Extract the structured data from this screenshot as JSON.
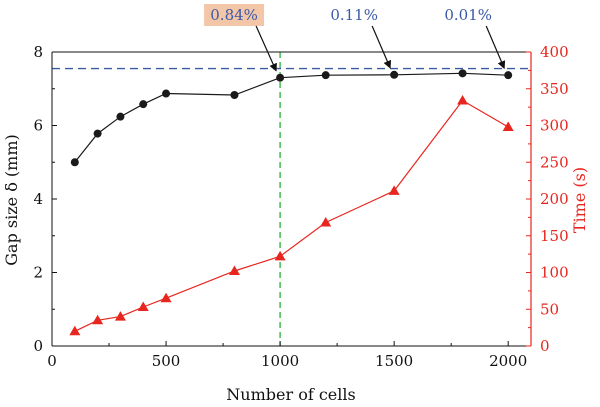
{
  "chart_data": {
    "type": "line",
    "x": [
      100,
      200,
      300,
      400,
      500,
      800,
      1000,
      1200,
      1500,
      1800,
      2000
    ],
    "series": [
      {
        "axis": "left",
        "color": "#1a1a1a",
        "marker": "circle",
        "values": [
          5.0,
          5.78,
          6.24,
          6.58,
          6.87,
          6.83,
          7.3,
          7.37,
          7.38,
          7.42,
          7.37
        ]
      },
      {
        "axis": "right",
        "color": "#e8261f",
        "marker": "triangle",
        "values": [
          20,
          35,
          40,
          53,
          65,
          102,
          122,
          168,
          211,
          334,
          298
        ]
      }
    ],
    "xlabel": "Number of cells",
    "ylabel_left": "Gap size δ (mm)",
    "ylabel_right": "Time (s)",
    "xlim": [
      0,
      2100
    ],
    "ylim_left": [
      0,
      8
    ],
    "ylim_right": [
      0,
      400
    ],
    "xticks": [
      "0",
      "500",
      "1000",
      "1500",
      "2000"
    ],
    "yticks_left": [
      "0",
      "2",
      "4",
      "6",
      "8"
    ],
    "yticks_right": [
      "0",
      "50",
      "100",
      "150",
      "200",
      "250",
      "300",
      "350",
      "400"
    ],
    "reference_lines": [
      {
        "orientation": "horizontal",
        "axis": "left",
        "value": 7.55,
        "color": "#3a5aa8",
        "style": "dashed"
      },
      {
        "orientation": "vertical",
        "value": 1000,
        "color": "#3bb54a",
        "style": "dashed"
      }
    ],
    "annotations": [
      {
        "text": "0.84%",
        "x": 1000,
        "y": 7.3,
        "color": "#3a5aa8",
        "highlight": "#f4c6a8"
      },
      {
        "text": "0.11%",
        "x": 1500,
        "y": 7.38,
        "color": "#3a5aa8"
      },
      {
        "text": "0.01%",
        "x": 2000,
        "y": 7.37,
        "color": "#3a5aa8"
      }
    ],
    "right_axis_color": "#e8261f",
    "grid": false
  }
}
